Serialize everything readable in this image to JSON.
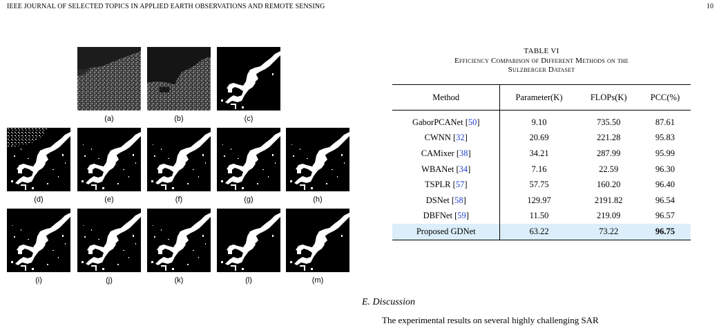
{
  "header": {
    "journal": "IEEE JOURNAL OF SELECTED TOPICS IN APPLIED EARTH OBSERVATIONS AND REMOTE SENSING",
    "page": "10"
  },
  "figure": {
    "panels": [
      "(a)",
      "(b)",
      "(c)",
      "(d)",
      "(e)",
      "(f)",
      "(g)",
      "(h)",
      "(i)",
      "(j)",
      "(k)",
      "(l)",
      "(m)"
    ]
  },
  "table": {
    "number": "TABLE VI",
    "caption_line1": "Efficiency Comparison of Different Methods on the",
    "caption_line2": "Sulzberger Dataset",
    "columns": [
      "Method",
      "Parameter(K)",
      "FLOPs(K)",
      "PCC(%)"
    ],
    "rows": [
      {
        "name": "GaborPCANet",
        "ref": "50",
        "param": "9.10",
        "flops": "735.50",
        "pcc": "87.61"
      },
      {
        "name": "CWNN",
        "ref": "32",
        "param": "20.69",
        "flops": "221.28",
        "pcc": "95.83"
      },
      {
        "name": "CAMixer",
        "ref": "38",
        "param": "34.21",
        "flops": "287.99",
        "pcc": "95.99"
      },
      {
        "name": "WBANet",
        "ref": "34",
        "param": "7.16",
        "flops": "22.59",
        "pcc": "96.30"
      },
      {
        "name": "TSPLR",
        "ref": "57",
        "param": "57.75",
        "flops": "160.20",
        "pcc": "96.40"
      },
      {
        "name": "DSNet",
        "ref": "58",
        "param": "129.97",
        "flops": "2191.82",
        "pcc": "96.54"
      },
      {
        "name": "DBFNet",
        "ref": "59",
        "param": "11.50",
        "flops": "219.09",
        "pcc": "96.57"
      }
    ],
    "proposed": {
      "name": "Proposed GDNet",
      "param": "63.22",
      "flops": "73.22",
      "pcc": "96.75"
    }
  },
  "section": {
    "title": "E.  Discussion",
    "first_line": "The experimental results on several highly challenging SAR"
  }
}
